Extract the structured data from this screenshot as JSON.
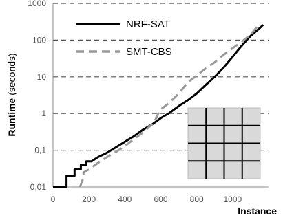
{
  "chart_data": {
    "type": "line",
    "title": "",
    "xlabel": "Instance",
    "ylabel_bold": "Runtime",
    "ylabel_unit": " (seconds)",
    "xlim": [
      0,
      1200
    ],
    "ylim": [
      0.01,
      1000
    ],
    "yscale": "log",
    "x_ticks": [
      0,
      200,
      400,
      600,
      800,
      1000
    ],
    "y_ticks": [
      {
        "value": 0.01,
        "label": "0,01"
      },
      {
        "value": 0.1,
        "label": "0,1"
      },
      {
        "value": 1,
        "label": "1"
      },
      {
        "value": 10,
        "label": "10"
      },
      {
        "value": 100,
        "label": "100"
      },
      {
        "value": 1000,
        "label": "1000"
      }
    ],
    "grid": "horizontal dashed",
    "legend_position": "top-left",
    "series": [
      {
        "name": "NRF-SAT",
        "style": "solid",
        "color": "#000000",
        "points": [
          [
            0,
            0.01
          ],
          [
            75,
            0.01
          ],
          [
            75,
            0.02
          ],
          [
            120,
            0.02
          ],
          [
            120,
            0.03
          ],
          [
            155,
            0.03
          ],
          [
            155,
            0.04
          ],
          [
            185,
            0.04
          ],
          [
            185,
            0.05
          ],
          [
            215,
            0.05
          ],
          [
            250,
            0.065
          ],
          [
            300,
            0.085
          ],
          [
            350,
            0.12
          ],
          [
            400,
            0.17
          ],
          [
            450,
            0.24
          ],
          [
            500,
            0.36
          ],
          [
            550,
            0.5
          ],
          [
            600,
            0.75
          ],
          [
            650,
            1.05
          ],
          [
            700,
            1.6
          ],
          [
            750,
            2.3
          ],
          [
            800,
            3.5
          ],
          [
            850,
            6
          ],
          [
            900,
            10
          ],
          [
            950,
            18
          ],
          [
            1000,
            35
          ],
          [
            1050,
            70
          ],
          [
            1100,
            130
          ],
          [
            1150,
            210
          ],
          [
            1170,
            260
          ]
        ]
      },
      {
        "name": "SMT-CBS",
        "style": "dashed",
        "color": "#999999",
        "points": [
          [
            150,
            0.01
          ],
          [
            170,
            0.018
          ],
          [
            170,
            0.025
          ],
          [
            200,
            0.03
          ],
          [
            250,
            0.045
          ],
          [
            300,
            0.065
          ],
          [
            350,
            0.09
          ],
          [
            400,
            0.13
          ],
          [
            450,
            0.2
          ],
          [
            500,
            0.3
          ],
          [
            550,
            0.5
          ],
          [
            560,
            0.6
          ],
          [
            575,
            0.75
          ],
          [
            590,
            1.1
          ],
          [
            600,
            1.3
          ],
          [
            650,
            2
          ],
          [
            700,
            3.5
          ],
          [
            725,
            5
          ],
          [
            750,
            7
          ],
          [
            790,
            10
          ],
          [
            850,
            17
          ],
          [
            900,
            25
          ],
          [
            950,
            40
          ],
          [
            1000,
            60
          ],
          [
            1050,
            90
          ],
          [
            1100,
            140
          ],
          [
            1150,
            280
          ]
        ]
      }
    ]
  },
  "inset": {
    "rows": 4,
    "cols": 4,
    "fill": "#d9d9d9",
    "line_color": "#000000"
  },
  "colors": {
    "grid": "#555555",
    "axis": "#8c8c8c"
  }
}
